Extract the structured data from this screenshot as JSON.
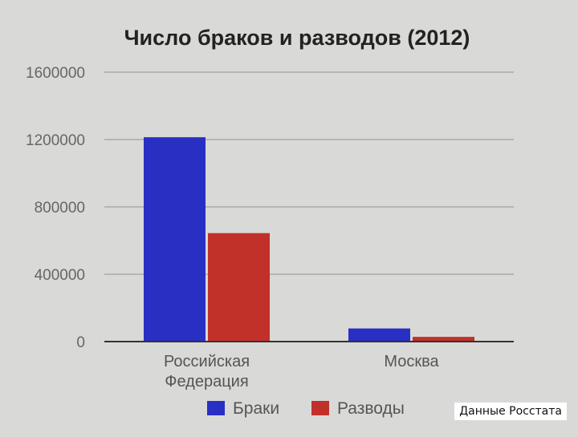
{
  "chart_data": {
    "type": "bar",
    "title": "Число браков и разводов (2012)",
    "categories": [
      "Российская Федерация",
      "Москва"
    ],
    "category_lines": [
      [
        "Российская",
        "Федерация"
      ],
      [
        "Москва"
      ]
    ],
    "series": [
      {
        "name": "Браки",
        "color": "#2a2fc4",
        "values": [
          1213600,
          78000
        ]
      },
      {
        "name": "Разводы",
        "color": "#c2302a",
        "values": [
          644100,
          28000
        ]
      }
    ],
    "ylim": [
      0,
      1600000
    ],
    "yticks": [
      0,
      400000,
      800000,
      1200000,
      1600000
    ],
    "ytick_labels": [
      "0",
      "400000",
      "800000",
      "1200000",
      "1600000"
    ],
    "grid": true,
    "legend_position": "bottom"
  },
  "source_note": "Данные Росстата"
}
